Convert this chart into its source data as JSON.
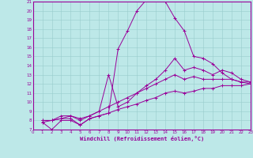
{
  "xlabel": "Windchill (Refroidissement éolien,°C)",
  "bg_color": "#bde8e8",
  "grid_color": "#99cccc",
  "line_color": "#990099",
  "xlim": [
    0,
    23
  ],
  "ylim": [
    7,
    21
  ],
  "yticks": [
    7,
    8,
    9,
    10,
    11,
    12,
    13,
    14,
    15,
    16,
    17,
    18,
    19,
    20,
    21
  ],
  "xticks": [
    0,
    1,
    2,
    3,
    4,
    5,
    6,
    7,
    8,
    9,
    10,
    11,
    12,
    13,
    14,
    15,
    16,
    17,
    18,
    19,
    20,
    21,
    22,
    23
  ],
  "series": [
    {
      "x": [
        1,
        2,
        3,
        4,
        5,
        6,
        7,
        8,
        9,
        10,
        11,
        12,
        13,
        14,
        15,
        16,
        17,
        18,
        19,
        20,
        21,
        22,
        23
      ],
      "y": [
        7.8,
        7.0,
        8.0,
        8.0,
        7.5,
        8.2,
        8.5,
        8.8,
        15.8,
        17.8,
        20.0,
        21.2,
        21.2,
        21.0,
        19.2,
        17.8,
        15.0,
        14.8,
        14.2,
        13.2,
        12.5,
        12.2,
        12.0
      ]
    },
    {
      "x": [
        1,
        2,
        3,
        4,
        5,
        6,
        7,
        8,
        9,
        10,
        11,
        12,
        13,
        14,
        15,
        16,
        17,
        18,
        19,
        20,
        21,
        22,
        23
      ],
      "y": [
        7.8,
        8.0,
        8.2,
        8.5,
        8.2,
        8.5,
        9.0,
        13.0,
        9.5,
        10.0,
        11.0,
        11.8,
        12.5,
        13.5,
        14.8,
        13.5,
        13.8,
        13.5,
        13.0,
        13.5,
        13.2,
        12.5,
        12.2
      ]
    },
    {
      "x": [
        1,
        2,
        3,
        4,
        5,
        6,
        7,
        8,
        9,
        10,
        11,
        12,
        13,
        14,
        15,
        16,
        17,
        18,
        19,
        20,
        21,
        22,
        23
      ],
      "y": [
        8.0,
        8.0,
        8.5,
        8.5,
        8.0,
        8.5,
        9.0,
        9.5,
        10.0,
        10.5,
        11.0,
        11.5,
        12.0,
        12.5,
        13.0,
        12.5,
        12.8,
        12.5,
        12.5,
        12.5,
        12.5,
        12.2,
        12.2
      ]
    },
    {
      "x": [
        1,
        2,
        3,
        4,
        5,
        6,
        7,
        8,
        9,
        10,
        11,
        12,
        13,
        14,
        15,
        16,
        17,
        18,
        19,
        20,
        21,
        22,
        23
      ],
      "y": [
        8.0,
        8.0,
        8.2,
        8.2,
        7.5,
        8.2,
        8.5,
        8.8,
        9.2,
        9.5,
        9.8,
        10.2,
        10.5,
        11.0,
        11.2,
        11.0,
        11.2,
        11.5,
        11.5,
        11.8,
        11.8,
        11.8,
        12.0
      ]
    }
  ]
}
